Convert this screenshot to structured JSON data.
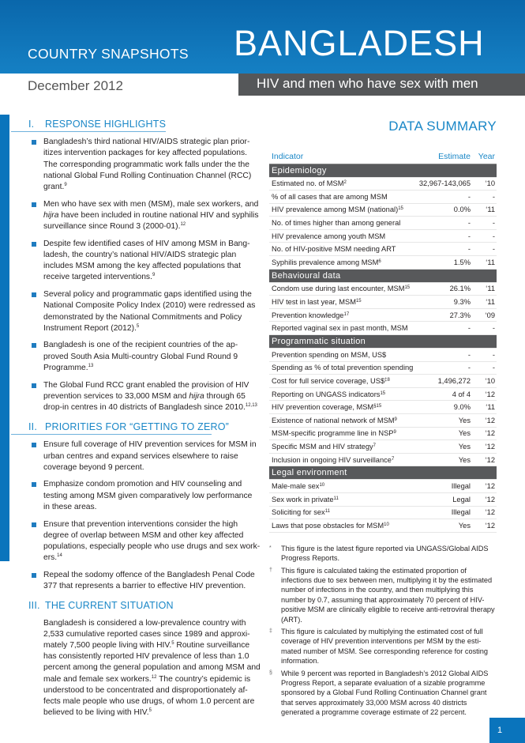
{
  "header": {
    "series": "COUNTRY SNAPSHOTS",
    "country": "BANGLADESH",
    "date": "December 2012",
    "topic": "HIV and men who have sex with men"
  },
  "sections": [
    {
      "num": "I.",
      "title": "RESPONSE HIGHLIGHTS",
      "bullets": [
        [
          {
            "t": "Bangladesh’s third national HIV/AIDS strategic plan prior-itizes intervention packages for key affected populations. The corresponding programmatic work falls under the the national Global Fund Rolling Continuation Channel (RCC) grant."
          },
          {
            "s": "9"
          }
        ],
        [
          {
            "t": "Men who have sex with men (MSM), male sex workers, and "
          },
          {
            "i": "hijra"
          },
          {
            "t": " have been included in routine national HIV and syphilis surveillance since Round 3 (2000-01)."
          },
          {
            "s": "12"
          }
        ],
        [
          {
            "t": "Despite few identified cases of HIV among MSM in Bang-ladesh, the country’s national HIV/AIDS strategic plan includes MSM among the key affected populations that receive targeted interventions."
          },
          {
            "s": "9"
          }
        ],
        [
          {
            "t": "Several policy and programmatic gaps identified using the National Composite Policy Index (2010) were redressed as demonstrated by the National Commitments and Policy Instrument Report (2012)."
          },
          {
            "s": "5"
          }
        ],
        [
          {
            "t": "Bangladesh is one of the recipient countries of the ap-proved South Asia Multi-country Global Fund Round 9 Programme."
          },
          {
            "s": "13"
          }
        ],
        [
          {
            "t": "The Global Fund RCC grant enabled the provision of HIV prevention services to 33,000 MSM and "
          },
          {
            "i": "hijra"
          },
          {
            "t": " through 65 drop-in centres in 40 districts of Bangladesh since 2010."
          },
          {
            "s": "12,13"
          }
        ]
      ]
    },
    {
      "num": "II.",
      "title": "PRIORITIES FOR “GETTING TO ZERO”",
      "bullets": [
        [
          {
            "t": "Ensure full coverage of HIV prevention services for MSM in urban centres and expand services elsewhere to raise coverage beyond 9 percent."
          }
        ],
        [
          {
            "t": "Emphasize condom promotion and HIV counseling and testing among MSM given comparatively low performance in these areas."
          }
        ],
        [
          {
            "t": "Ensure that prevention interventions consider the high degree of overlap between MSM and other key affected populations, especially people who use drugs and sex work-ers."
          },
          {
            "s": "14"
          }
        ],
        [
          {
            "t": "Repeal the sodomy offence of the Bangladesh Penal Code 377 that represents a barrier to effective HIV prevention."
          }
        ]
      ]
    },
    {
      "num": "III.",
      "title": "THE CURRENT SITUATION",
      "paragraph": [
        {
          "t": "Bangladesh is considered a low-prevalence country with 2,533 cumulative reported cases since 1989 and approxi-mately 7,500 people living with HIV."
        },
        {
          "s": "5"
        },
        {
          "t": " Routine surveillance has consistently reported HIV prevalence of less than 1.0 percent among the general population and among MSM and male and female sex workers."
        },
        {
          "s": "12"
        },
        {
          "t": " The country’s epidemic is understood to be concentrated and disproportionately af-fects male people who use drugs, of whom 1.0 percent are believed to be living with HIV."
        },
        {
          "s": "5"
        }
      ]
    }
  ],
  "summary": {
    "title": "DATA SUMMARY",
    "columns": {
      "indicator": "Indicator",
      "estimate": "Estimate",
      "year": "Year"
    },
    "groups": [
      {
        "name": "Epidemiology",
        "rows": [
          {
            "label": "Estimated no. of MSM",
            "sup": "2",
            "estimate": "32,967-143,065",
            "year": "‘10"
          },
          {
            "label": "% of all cases that are among MSM",
            "sup": "",
            "estimate": "-",
            "year": "-"
          },
          {
            "label": "HIV prevalence among MSM (national)",
            "sup": "15",
            "estimate": "0.0%",
            "year": "‘11"
          },
          {
            "label": "No. of times higher than among general",
            "sup": "",
            "estimate": "-",
            "year": "-"
          },
          {
            "label": "HIV prevalence among youth MSM",
            "sup": "",
            "estimate": "-",
            "year": "-"
          },
          {
            "label": "No. of HIV-positive MSM needing ART",
            "sup": "",
            "estimate": "-",
            "year": "-"
          },
          {
            "label": "Syphilis prevalence among MSM",
            "sup": "6",
            "estimate": "1.5%",
            "year": "‘11"
          }
        ]
      },
      {
        "name": "Behavioural data",
        "rows": [
          {
            "label": "Condom use during last encounter, MSM",
            "sup": "15",
            "estimate": "26.1%",
            "year": "‘11"
          },
          {
            "label": "HIV test in last year, MSM",
            "sup": "15",
            "estimate": "9.3%",
            "year": "‘11"
          },
          {
            "label": "Prevention knowledge",
            "sup": "17",
            "estimate": "27.3%",
            "year": "‘09"
          },
          {
            "label": "Reported vaginal sex in past month, MSM",
            "sup": "",
            "estimate": "-",
            "year": "-"
          }
        ]
      },
      {
        "name": "Programmatic situation",
        "rows": [
          {
            "label": "Prevention spending on MSM, US$",
            "sup": "",
            "estimate": "-",
            "year": "-"
          },
          {
            "label": "Spending as % of total prevention spending",
            "sup": "",
            "estimate": "-",
            "year": "-"
          },
          {
            "label": "Cost for full service coverage, US$",
            "sup": "‡8",
            "estimate": "1,496,272",
            "year": "‘10"
          },
          {
            "label": "Reporting on UNGASS indicators",
            "sup": "15",
            "estimate": "4 of 4",
            "year": "‘12"
          },
          {
            "label": "HIV prevention coverage, MSM",
            "sup": "§15",
            "estimate": "9.0%",
            "year": "‘11"
          },
          {
            "label": "Existence of national network of MSM",
            "sup": "9",
            "estimate": "Yes",
            "year": "‘12"
          },
          {
            "label": "MSM-specific programme line in NSP",
            "sup": "9",
            "estimate": "Yes",
            "year": "‘12"
          },
          {
            "label": "Specific MSM and HIV strategy",
            "sup": "7",
            "estimate": "Yes",
            "year": "‘12"
          },
          {
            "label": "Inclusion in ongoing HIV surveillance",
            "sup": "7",
            "estimate": "Yes",
            "year": "‘12"
          }
        ]
      },
      {
        "name": "Legal environment",
        "rows": [
          {
            "label": "Male-male sex",
            "sup": "10",
            "estimate": "Illegal",
            "year": "‘12"
          },
          {
            "label": "Sex work in private",
            "sup": "11",
            "estimate": "Legal",
            "year": "‘12"
          },
          {
            "label": "Soliciting for sex",
            "sup": "11",
            "estimate": "Illegal",
            "year": "‘12"
          },
          {
            "label": "Laws that pose obstacles for MSM",
            "sup": "10",
            "estimate": "Yes",
            "year": "‘12"
          }
        ]
      }
    ],
    "footnotes": [
      {
        "mark": "*",
        "text": "This figure is the latest figure reported via UNGASS/Global AIDS Progress Reports."
      },
      {
        "mark": "†",
        "text": "This figure is calculated taking the estimated proportion of infections due to sex between men, multiplying it by the estimated number of infections in the country, and then multiplying this number by 0.7, assuming that approximately 70 percent of HIV-positive MSM are clinically eligible to receive anti-retroviral therapy (ART)."
      },
      {
        "mark": "‡",
        "text": "This figure is calculated by multiplying the estimated cost of full coverage of HIV prevention interventions per MSM by the esti-mated number of MSM. See corresponding reference for costing information."
      },
      {
        "mark": "§",
        "text": "While 9 percent was reported in Bangladesh’s 2012 Global AIDS Progress Report, a separate evaluation of a sizable programme sponsored by a Global Fund Rolling Continuation Channel grant that serves approximately 33,000 MSM across 40 districts generated a programme coverage estimate of 22 percent."
      }
    ]
  },
  "page_number": "1",
  "colors": {
    "brand_blue": "#0a74bc",
    "heading_blue": "#1a87c7",
    "band_gray": "#58595b"
  }
}
